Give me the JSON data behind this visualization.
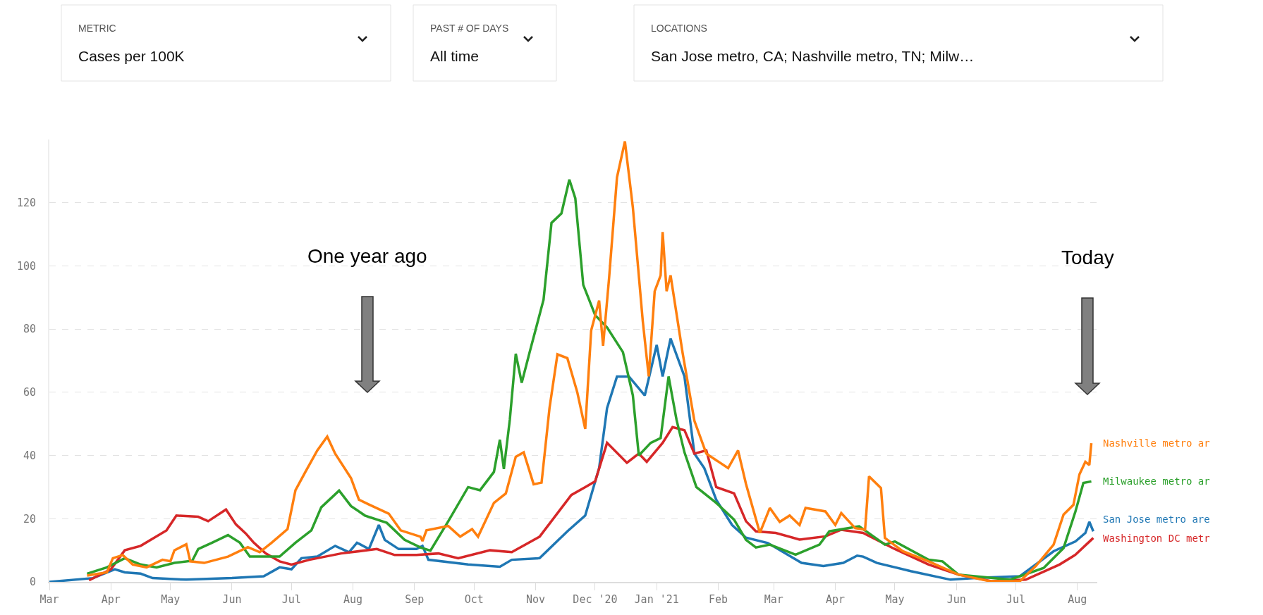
{
  "chart_data": {
    "type": "line",
    "annotations": [
      "METRIC",
      "Cases per 100K",
      "PAST # OF DAYS",
      "All time",
      "LOCATIONS",
      "San Jose metro, CA; Nashville metro, TN; Milw…",
      "One year ago",
      "Today"
    ],
    "xlim": [
      "2020-03-01",
      "2021-08-11"
    ],
    "xticks": [
      {
        "value": "2020-03-01",
        "label": "Mar"
      },
      {
        "value": "2020-04-01",
        "label": "Apr"
      },
      {
        "value": "2020-05-01",
        "label": "May"
      },
      {
        "value": "2020-06-01",
        "label": "Jun"
      },
      {
        "value": "2020-07-01",
        "label": "Jul"
      },
      {
        "value": "2020-08-01",
        "label": "Aug"
      },
      {
        "value": "2020-09-01",
        "label": "Sep"
      },
      {
        "value": "2020-10-01",
        "label": "Oct"
      },
      {
        "value": "2020-11-01",
        "label": "Nov"
      },
      {
        "value": "2020-12-01",
        "label": "Dec '20"
      },
      {
        "value": "2021-01-01",
        "label": "Jan '21"
      },
      {
        "value": "2021-02-01",
        "label": "Feb"
      },
      {
        "value": "2021-03-01",
        "label": "Mar"
      },
      {
        "value": "2021-04-01",
        "label": "Apr"
      },
      {
        "value": "2021-05-01",
        "label": "May"
      },
      {
        "value": "2021-06-01",
        "label": "Jun"
      },
      {
        "value": "2021-07-01",
        "label": "Jul"
      },
      {
        "value": "2021-08-01",
        "label": "Aug"
      }
    ],
    "ylim": [
      0,
      140
    ],
    "yticks": [
      0,
      20,
      40,
      60,
      80,
      100,
      120
    ],
    "grid": "y",
    "series": [
      {
        "name": "San Jose metro are",
        "color": "#1f77b4",
        "x": [
          "2020-03-01",
          "2020-03-23",
          "2020-04-03",
          "2020-04-08",
          "2020-04-16",
          "2020-04-22",
          "2020-05-09",
          "2020-06-01",
          "2020-06-17",
          "2020-06-25",
          "2020-07-01",
          "2020-07-06",
          "2020-07-14",
          "2020-07-23",
          "2020-07-30",
          "2020-08-03",
          "2020-08-09",
          "2020-08-14",
          "2020-08-17",
          "2020-08-24",
          "2020-09-02",
          "2020-09-05",
          "2020-09-08",
          "2020-09-28",
          "2020-10-14",
          "2020-10-20",
          "2020-11-03",
          "2020-11-17",
          "2020-11-26",
          "2020-12-03",
          "2020-12-07",
          "2020-12-12",
          "2020-12-18",
          "2020-12-26",
          "2021-01-01",
          "2021-01-04",
          "2021-01-08",
          "2021-01-15",
          "2021-01-20",
          "2021-01-25",
          "2021-01-31",
          "2021-02-08",
          "2021-02-15",
          "2021-02-26",
          "2021-03-15",
          "2021-03-26",
          "2021-04-05",
          "2021-04-12",
          "2021-04-15",
          "2021-04-22",
          "2021-05-09",
          "2021-05-29",
          "2021-06-12",
          "2021-07-03",
          "2021-07-20",
          "2021-07-31",
          "2021-08-05",
          "2021-08-07",
          "2021-08-09"
        ],
        "values": [
          0,
          1.2,
          4,
          3,
          2.6,
          1.2,
          0.7,
          1.2,
          1.8,
          4.6,
          4,
          7.5,
          8,
          11.4,
          9.4,
          12.4,
          10.4,
          18,
          13.3,
          10.4,
          10.4,
          11.4,
          7,
          5.5,
          4.8,
          7,
          7.5,
          16,
          21,
          36,
          55,
          65,
          65,
          59,
          75,
          65,
          77,
          65,
          40.6,
          36,
          26,
          18,
          14,
          12.3,
          6,
          5,
          6,
          8.3,
          8,
          6,
          3.4,
          0.7,
          1.3,
          1.8,
          9.7,
          12.8,
          15.5,
          19,
          16
        ]
      },
      {
        "name": "Washington DC metr",
        "color": "#d62728",
        "x": [
          "2020-03-21",
          "2020-04-01",
          "2020-04-08",
          "2020-04-16",
          "2020-04-29",
          "2020-05-04",
          "2020-05-15",
          "2020-05-20",
          "2020-05-29",
          "2020-06-03",
          "2020-06-08",
          "2020-06-12",
          "2020-06-18",
          "2020-06-25",
          "2020-07-01",
          "2020-07-10",
          "2020-07-26",
          "2020-08-13",
          "2020-08-22",
          "2020-09-02",
          "2020-09-13",
          "2020-09-23",
          "2020-10-09",
          "2020-10-20",
          "2020-11-03",
          "2020-11-19",
          "2020-11-26",
          "2020-12-01",
          "2020-12-07",
          "2020-12-17",
          "2020-12-23",
          "2020-12-27",
          "2021-01-04",
          "2021-01-09",
          "2021-01-15",
          "2021-01-20",
          "2021-01-26",
          "2021-01-31",
          "2021-02-09",
          "2021-02-15",
          "2021-02-20",
          "2021-03-02",
          "2021-03-14",
          "2021-03-27",
          "2021-04-04",
          "2021-04-15",
          "2021-04-30",
          "2021-05-18",
          "2021-06-02",
          "2021-06-19",
          "2021-07-06",
          "2021-07-23",
          "2021-07-31",
          "2021-08-09"
        ],
        "values": [
          0.5,
          4,
          10,
          11.4,
          16.3,
          21,
          20.6,
          19.2,
          22.9,
          18.2,
          15.3,
          12.4,
          9,
          6.5,
          5.5,
          7,
          9,
          10.4,
          8.5,
          8.5,
          9,
          7.5,
          10,
          9.4,
          14.3,
          27.5,
          30,
          31.8,
          44,
          37.7,
          40.6,
          38,
          44,
          49,
          48,
          40.6,
          41.6,
          30,
          28,
          19.2,
          16,
          15.5,
          13.4,
          14.4,
          16.5,
          15.5,
          10.7,
          5.5,
          2.3,
          0.2,
          0.7,
          5.5,
          8.6,
          13.9
        ]
      },
      {
        "name": "Milwaukee metro ar",
        "color": "#2ca02c",
        "x": [
          "2020-03-20",
          "2020-03-30",
          "2020-04-08",
          "2020-04-16",
          "2020-04-24",
          "2020-05-03",
          "2020-05-12",
          "2020-05-15",
          "2020-05-22",
          "2020-05-30",
          "2020-06-05",
          "2020-06-10",
          "2020-06-25",
          "2020-07-03",
          "2020-07-11",
          "2020-07-16",
          "2020-07-25",
          "2020-07-31",
          "2020-08-07",
          "2020-08-18",
          "2020-08-27",
          "2020-09-04",
          "2020-09-09",
          "2020-09-18",
          "2020-09-28",
          "2020-10-04",
          "2020-10-11",
          "2020-10-14",
          "2020-10-16",
          "2020-10-19",
          "2020-10-22",
          "2020-10-25",
          "2020-10-29",
          "2020-11-05",
          "2020-11-09",
          "2020-11-14",
          "2020-11-18",
          "2020-11-21",
          "2020-11-25",
          "2020-12-01",
          "2020-12-07",
          "2020-12-15",
          "2020-12-20",
          "2020-12-23",
          "2020-12-29",
          "2021-01-03",
          "2021-01-07",
          "2021-01-11",
          "2021-01-15",
          "2021-01-21",
          "2021-01-31",
          "2021-02-09",
          "2021-02-15",
          "2021-02-20",
          "2021-02-27",
          "2021-03-12",
          "2021-03-24",
          "2021-03-29",
          "2021-04-13",
          "2021-04-26",
          "2021-05-01",
          "2021-05-18",
          "2021-05-25",
          "2021-06-02",
          "2021-06-28",
          "2021-07-15",
          "2021-07-25",
          "2021-07-31",
          "2021-08-04",
          "2021-08-08"
        ],
        "values": [
          2.6,
          4.6,
          7.5,
          5.5,
          4.6,
          6,
          6.7,
          10.4,
          12.4,
          14.8,
          12.4,
          8,
          8,
          12.4,
          16.3,
          23.6,
          28.9,
          24,
          21,
          18.7,
          13.3,
          10.9,
          9.9,
          19.2,
          30,
          29,
          34.8,
          45,
          35.7,
          51.3,
          72.2,
          63,
          72.7,
          89.3,
          113.6,
          116.6,
          127.3,
          121.4,
          94,
          84.4,
          80.5,
          72.7,
          59,
          40,
          44,
          45.5,
          65,
          51.3,
          41,
          30,
          25,
          19.7,
          13.3,
          10.9,
          11.8,
          8.6,
          11.8,
          16,
          17.6,
          11.8,
          12.8,
          7,
          6.5,
          2.3,
          0.7,
          4.4,
          10.7,
          22.3,
          31.3,
          31.8
        ]
      },
      {
        "name": "Nashville metro ar",
        "color": "#ff7f0e",
        "x": [
          "2020-03-20",
          "2020-03-30",
          "2020-04-02",
          "2020-04-07",
          "2020-04-12",
          "2020-04-19",
          "2020-04-27",
          "2020-05-01",
          "2020-05-03",
          "2020-05-09",
          "2020-05-11",
          "2020-05-18",
          "2020-05-30",
          "2020-06-09",
          "2020-06-15",
          "2020-06-21",
          "2020-06-29",
          "2020-07-03",
          "2020-07-08",
          "2020-07-14",
          "2020-07-19",
          "2020-07-23",
          "2020-07-31",
          "2020-08-04",
          "2020-08-09",
          "2020-08-19",
          "2020-08-25",
          "2020-09-04",
          "2020-09-05",
          "2020-09-07",
          "2020-09-18",
          "2020-09-24",
          "2020-09-30",
          "2020-10-03",
          "2020-10-11",
          "2020-10-17",
          "2020-10-22",
          "2020-10-26",
          "2020-10-31",
          "2020-11-04",
          "2020-11-08",
          "2020-11-12",
          "2020-11-17",
          "2020-11-22",
          "2020-11-26",
          "2020-11-29",
          "2020-12-03",
          "2020-12-05",
          "2020-12-08",
          "2020-12-12",
          "2020-12-16",
          "2020-12-20",
          "2020-12-25",
          "2020-12-28",
          "2020-12-31",
          "2021-01-03",
          "2021-01-04",
          "2021-01-06",
          "2021-01-08",
          "2021-01-14",
          "2021-01-20",
          "2021-01-26",
          "2021-02-06",
          "2021-02-11",
          "2021-02-15",
          "2021-02-22",
          "2021-02-27",
          "2021-03-04",
          "2021-03-09",
          "2021-03-14",
          "2021-03-17",
          "2021-03-27",
          "2021-04-01",
          "2021-04-04",
          "2021-04-11",
          "2021-04-16",
          "2021-04-18",
          "2021-04-24",
          "2021-04-26",
          "2021-05-05",
          "2021-05-18",
          "2021-06-02",
          "2021-06-18",
          "2021-07-03",
          "2021-07-11",
          "2021-07-20",
          "2021-07-25",
          "2021-07-30",
          "2021-08-02",
          "2021-08-05",
          "2021-08-07",
          "2021-08-08"
        ],
        "values": [
          2,
          3,
          7.5,
          8.5,
          5.5,
          4.6,
          7,
          6.5,
          10,
          11.9,
          6.5,
          6,
          8,
          11,
          9.4,
          12.4,
          16.7,
          29,
          34.8,
          41.6,
          46,
          40.6,
          32.8,
          26,
          24.5,
          21.6,
          16.3,
          14.3,
          12.9,
          16.3,
          17.7,
          14.3,
          16.7,
          14.3,
          25,
          28,
          39.6,
          41,
          30.9,
          31.4,
          55,
          72,
          70.8,
          60,
          48.4,
          79.6,
          89,
          74.7,
          96,
          128,
          139.4,
          118.5,
          82.5,
          65,
          92,
          97,
          110.7,
          92,
          97,
          72.7,
          51,
          40.6,
          36,
          41.6,
          31,
          15.5,
          23.4,
          19,
          21,
          18,
          23.4,
          22.3,
          18,
          21.8,
          17,
          16.5,
          33.4,
          29.7,
          13.9,
          9.7,
          6.5,
          2.3,
          0.2,
          0.2,
          5,
          11.8,
          21.3,
          24.4,
          34,
          38,
          37,
          43.9
        ]
      }
    ]
  }
}
